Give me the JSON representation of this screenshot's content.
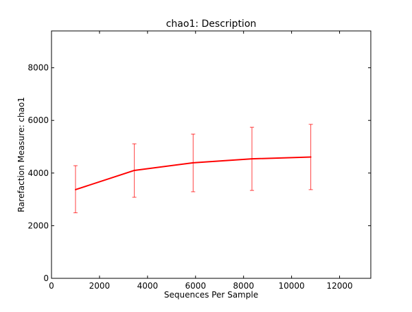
{
  "chart_data": {
    "type": "line",
    "title": "chao1: Description",
    "xlabel": "Sequences Per Sample",
    "ylabel": "Rarefaction Measure: chao1",
    "xlim": [
      0,
      13300
    ],
    "ylim": [
      0,
      9400
    ],
    "xticks": [
      0,
      2000,
      4000,
      6000,
      8000,
      10000,
      12000
    ],
    "yticks": [
      0,
      2000,
      4000,
      6000,
      8000
    ],
    "grid": false,
    "series": [
      {
        "color": "#ff0000",
        "points": [
          {
            "x": 1000,
            "y": 3370,
            "low": 2490,
            "high": 4280
          },
          {
            "x": 3450,
            "y": 4100,
            "low": 3080,
            "high": 5110
          },
          {
            "x": 5900,
            "y": 4390,
            "low": 3290,
            "high": 5480
          },
          {
            "x": 8350,
            "y": 4540,
            "low": 3340,
            "high": 5740
          },
          {
            "x": 10800,
            "y": 4610,
            "low": 3370,
            "high": 5850
          }
        ]
      }
    ]
  }
}
